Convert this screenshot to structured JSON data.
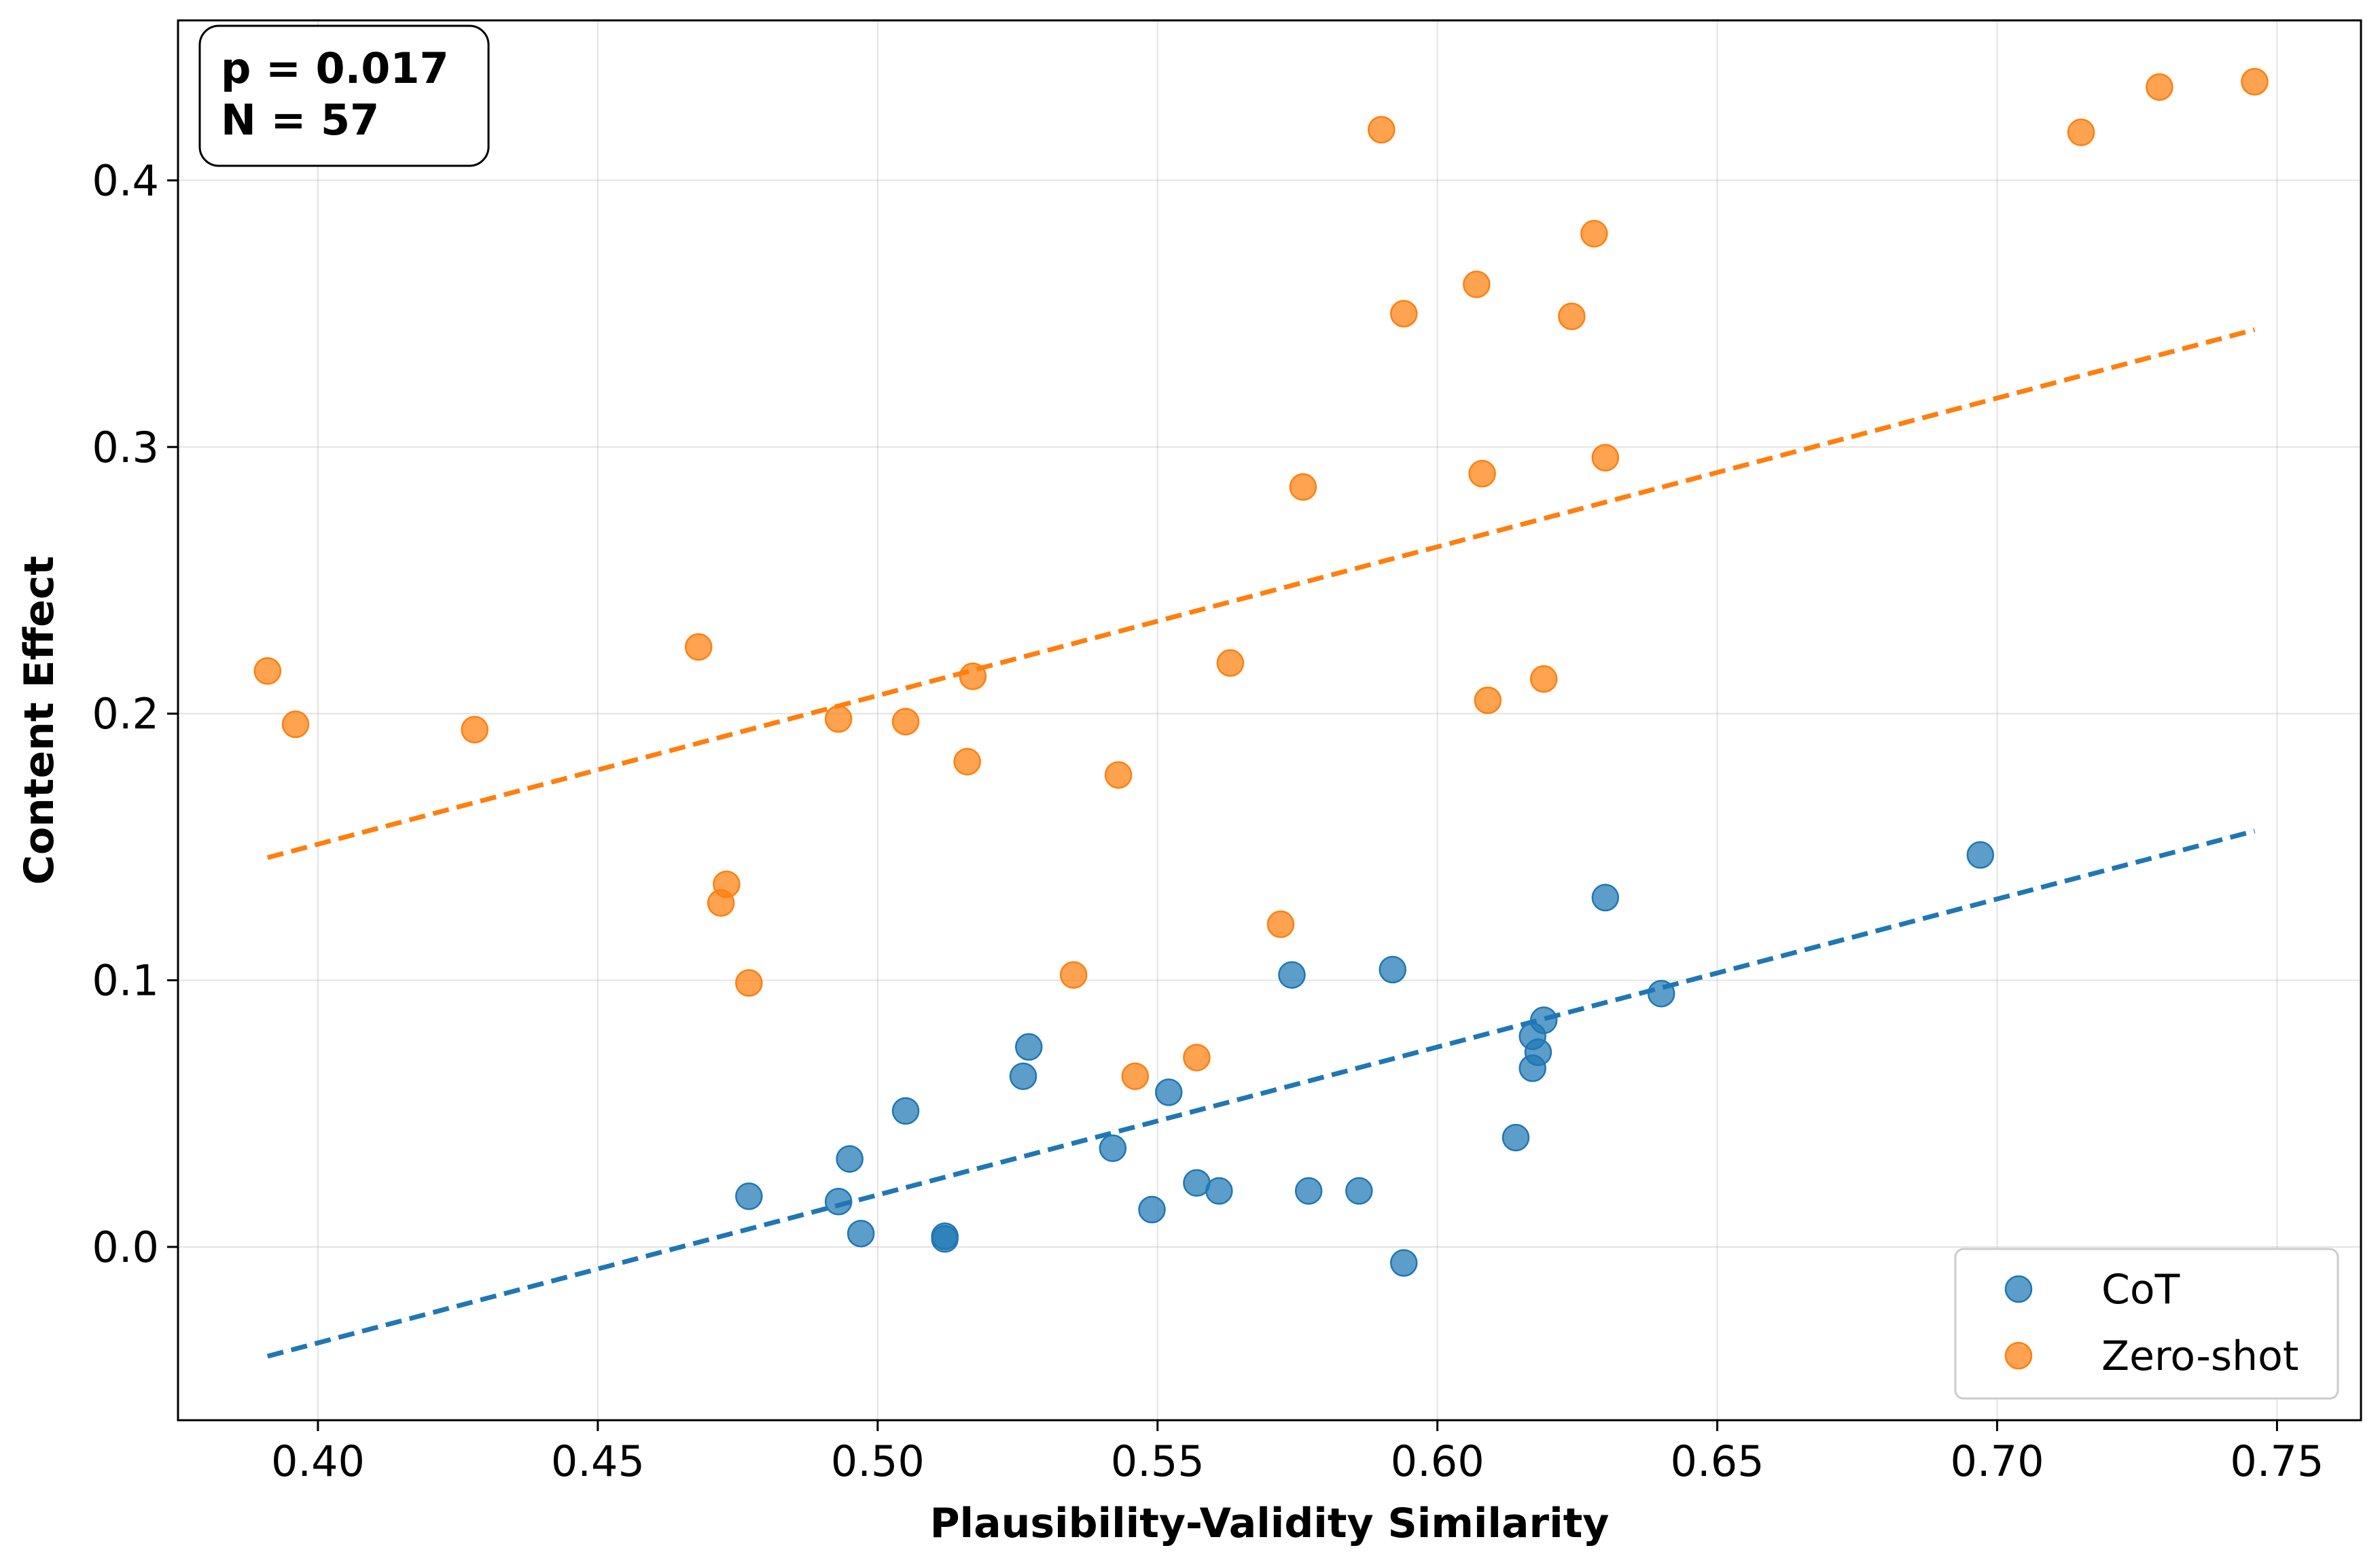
{
  "chart_data": {
    "type": "scatter",
    "title": "",
    "xlabel": "Plausibility-Validity Similarity",
    "ylabel": "Content Effect",
    "xlim": [
      0.375,
      0.765
    ],
    "ylim": [
      -0.065,
      0.46
    ],
    "xticks": [
      0.4,
      0.45,
      0.5,
      0.55,
      0.6,
      0.65,
      0.7,
      0.75
    ],
    "xtick_labels": [
      "0.40",
      "0.45",
      "0.50",
      "0.55",
      "0.60",
      "0.65",
      "0.70",
      "0.75"
    ],
    "yticks": [
      0.0,
      0.1,
      0.2,
      0.3,
      0.4
    ],
    "ytick_labels": [
      "0.0",
      "0.1",
      "0.2",
      "0.3",
      "0.4"
    ],
    "grid": true,
    "annotation": {
      "lines": [
        "p = 0.017",
        "N = 57"
      ],
      "position": "top-left"
    },
    "legend": {
      "position": "bottom-right"
    },
    "series": [
      {
        "name": "CoT",
        "color": "#1f77b4",
        "trendline": {
          "x": [
            0.391,
            0.746
          ],
          "y": [
            -0.041,
            0.156
          ]
        },
        "points": [
          {
            "x": 0.477,
            "y": 0.019
          },
          {
            "x": 0.493,
            "y": 0.017
          },
          {
            "x": 0.495,
            "y": 0.033
          },
          {
            "x": 0.497,
            "y": 0.005
          },
          {
            "x": 0.505,
            "y": 0.051
          },
          {
            "x": 0.512,
            "y": 0.004
          },
          {
            "x": 0.512,
            "y": 0.003
          },
          {
            "x": 0.526,
            "y": 0.064
          },
          {
            "x": 0.527,
            "y": 0.075
          },
          {
            "x": 0.542,
            "y": 0.037
          },
          {
            "x": 0.549,
            "y": 0.014
          },
          {
            "x": 0.552,
            "y": 0.058
          },
          {
            "x": 0.557,
            "y": 0.024
          },
          {
            "x": 0.561,
            "y": 0.021
          },
          {
            "x": 0.574,
            "y": 0.102
          },
          {
            "x": 0.577,
            "y": 0.021
          },
          {
            "x": 0.586,
            "y": 0.021
          },
          {
            "x": 0.592,
            "y": 0.104
          },
          {
            "x": 0.594,
            "y": -0.006
          },
          {
            "x": 0.614,
            "y": 0.041
          },
          {
            "x": 0.617,
            "y": 0.067
          },
          {
            "x": 0.617,
            "y": 0.079
          },
          {
            "x": 0.618,
            "y": 0.073
          },
          {
            "x": 0.619,
            "y": 0.085
          },
          {
            "x": 0.63,
            "y": 0.131
          },
          {
            "x": 0.64,
            "y": 0.095
          },
          {
            "x": 0.697,
            "y": 0.147
          }
        ]
      },
      {
        "name": "Zero-shot",
        "color": "#ff7f0e",
        "trendline": {
          "x": [
            0.391,
            0.746
          ],
          "y": [
            0.146,
            0.344
          ]
        },
        "points": [
          {
            "x": 0.391,
            "y": 0.216
          },
          {
            "x": 0.396,
            "y": 0.196
          },
          {
            "x": 0.428,
            "y": 0.194
          },
          {
            "x": 0.468,
            "y": 0.225
          },
          {
            "x": 0.472,
            "y": 0.129
          },
          {
            "x": 0.473,
            "y": 0.136
          },
          {
            "x": 0.477,
            "y": 0.099
          },
          {
            "x": 0.493,
            "y": 0.198
          },
          {
            "x": 0.505,
            "y": 0.197
          },
          {
            "x": 0.516,
            "y": 0.182
          },
          {
            "x": 0.517,
            "y": 0.214
          },
          {
            "x": 0.535,
            "y": 0.102
          },
          {
            "x": 0.543,
            "y": 0.177
          },
          {
            "x": 0.546,
            "y": 0.064
          },
          {
            "x": 0.557,
            "y": 0.071
          },
          {
            "x": 0.563,
            "y": 0.219
          },
          {
            "x": 0.572,
            "y": 0.121
          },
          {
            "x": 0.576,
            "y": 0.285
          },
          {
            "x": 0.59,
            "y": 0.419
          },
          {
            "x": 0.594,
            "y": 0.35
          },
          {
            "x": 0.607,
            "y": 0.361
          },
          {
            "x": 0.608,
            "y": 0.29
          },
          {
            "x": 0.609,
            "y": 0.205
          },
          {
            "x": 0.619,
            "y": 0.213
          },
          {
            "x": 0.624,
            "y": 0.349
          },
          {
            "x": 0.628,
            "y": 0.38
          },
          {
            "x": 0.63,
            "y": 0.296
          },
          {
            "x": 0.715,
            "y": 0.418
          },
          {
            "x": 0.729,
            "y": 0.435
          },
          {
            "x": 0.746,
            "y": 0.437
          }
        ]
      }
    ]
  }
}
